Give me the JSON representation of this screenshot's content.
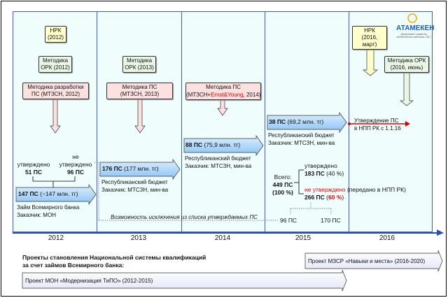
{
  "years": [
    "2012",
    "2013",
    "2014",
    "2015",
    "2016"
  ],
  "logo": {
    "name": "АТАМЕКЕН",
    "caption": "Департамент развития человеческого капитала, 2017"
  },
  "boxes": {
    "nrk2012": [
      "НРК",
      "(2012)"
    ],
    "ork2012": [
      "Методика",
      "ОРК (2012)"
    ],
    "ps2012": [
      "Методика разработки",
      "ПС (МТЗСН, 2012)"
    ],
    "ork2013": [
      "Методика",
      "ОРК (2013)"
    ],
    "ps2013": [
      "Методика ПС",
      "(МТЗСН, 2013)"
    ],
    "ps2014": {
      "l1": "Методика ПС",
      "a": "(МТЗСН+",
      "b": "Ernst&Young",
      "c": ", 2014)"
    },
    "nrk2016": [
      "НРК",
      "(2016, март)"
    ],
    "ork2016": [
      "Методика ОРК",
      "(2016, июнь)"
    ]
  },
  "arrows": {
    "a2012": {
      "bold": "147 ПС",
      "rest": " (~147 млн. тг)",
      "l1": "Займ Всемирного банка",
      "l2": "Заказчик: МОН"
    },
    "a2013": {
      "bold": "176 ПС",
      "rest": " (177 млн. тг)",
      "l1": "Республиканский бюджет",
      "l2": "Заказчик: МТСЗН, мин-ва"
    },
    "a2014": {
      "bold": "88 ПС",
      "rest": " (75,9 млн. тг)",
      "l1": "Республиканский бюджет",
      "l2": "Заказчик: МТСЗН, мин-ва"
    },
    "a2015": {
      "bold": "38 ПС",
      "rest": " (69,2 млн. тг)",
      "l1": "Республиканский бюджет",
      "l2": "Заказчик: МТСЗН, мин-ва"
    }
  },
  "approved2012": {
    "label": "утверждено",
    "value": "51 ПС"
  },
  "notapproved2012": {
    "l1": "не",
    "l2": "утверждено",
    "value": "96 ПС"
  },
  "exclusion": "Возможность исключения из списка утверждаемых ПС",
  "npp": {
    "l1": "Утверждение ПС",
    "l2": "в НПП РК с 1.1.16"
  },
  "total": {
    "l1": "Всего:",
    "l2": "449 ПС",
    "l3": "(100 %)"
  },
  "approved": {
    "label": "утверждено",
    "bold": "183 ПС",
    "pct": " (40 %)"
  },
  "notapproved": {
    "label": "не утверждено",
    "note": " (передано в НПП РК)",
    "bold": "266 ПС",
    "pct": "60 %"
  },
  "split": [
    "96 ПС",
    "170 ПС"
  ],
  "bottom": {
    "title1": "Проекты становления Национальной системы квалификаций",
    "title2": "за счет займов Всемирного банка:",
    "proj1": "Проект МЗСР «Навыки и места» (2016-2020)",
    "proj2": "Проект МОН «Модернизация ТиПО» (2012-2015)"
  }
}
